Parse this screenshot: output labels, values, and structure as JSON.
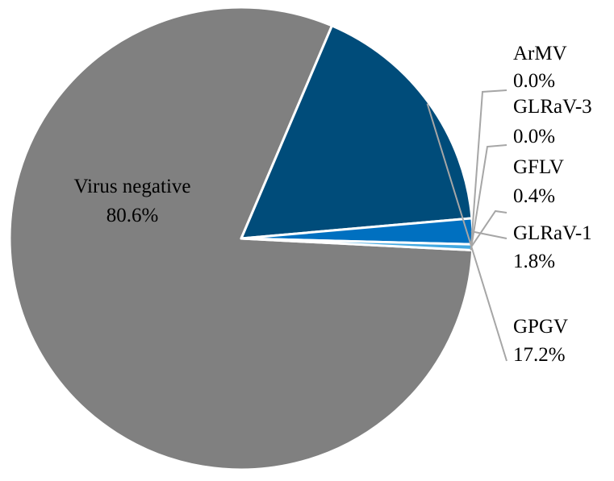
{
  "chart_data": {
    "type": "pie",
    "title": "",
    "slices": [
      {
        "label": "Virus negative",
        "value": 80.6,
        "value_text": "80.6%",
        "color": "#808080"
      },
      {
        "label": "GPGV",
        "value": 17.2,
        "value_text": "17.2%",
        "color": "#004C7A"
      },
      {
        "label": "GLRaV-1",
        "value": 1.8,
        "value_text": "1.8%",
        "color": "#0070C0"
      },
      {
        "label": "GFLV",
        "value": 0.4,
        "value_text": "0.4%",
        "color": "#43A8E0"
      },
      {
        "label": "GLRaV-3",
        "value": 0.0,
        "value_text": "0.0%",
        "color": "#6EC1EA"
      },
      {
        "label": "ArMV",
        "value": 0.0,
        "value_text": "0.0%",
        "color": "#9DD3F0"
      }
    ],
    "legend": "none",
    "data_labels": "outside with leader lines"
  }
}
